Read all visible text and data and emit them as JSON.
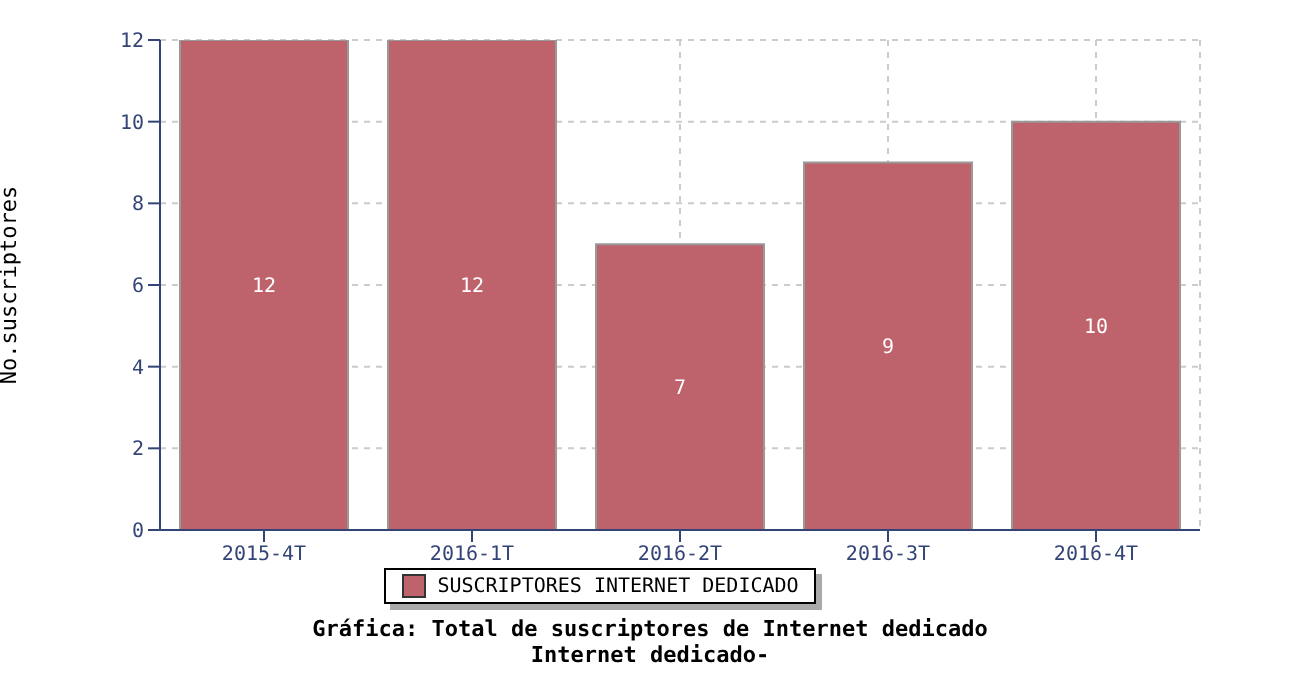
{
  "chart_data": {
    "type": "bar",
    "title": "Gráfica: Total de suscriptores de Internet dedicado",
    "subtitle": "Internet dedicado-",
    "ylabel": "No.suscriptores",
    "categories": [
      "2015-4T",
      "2016-1T",
      "2016-2T",
      "2016-3T",
      "2016-4T"
    ],
    "series": [
      {
        "name": "SUSCRIPTORES INTERNET DEDICADO",
        "color": "#be626b",
        "values": [
          12,
          12,
          7,
          9,
          10
        ]
      }
    ],
    "ylim": [
      0,
      12
    ],
    "yticks": [
      0,
      2,
      4,
      6,
      8,
      10,
      12
    ],
    "grid": true,
    "legend": "bottom",
    "data_labels": true
  }
}
